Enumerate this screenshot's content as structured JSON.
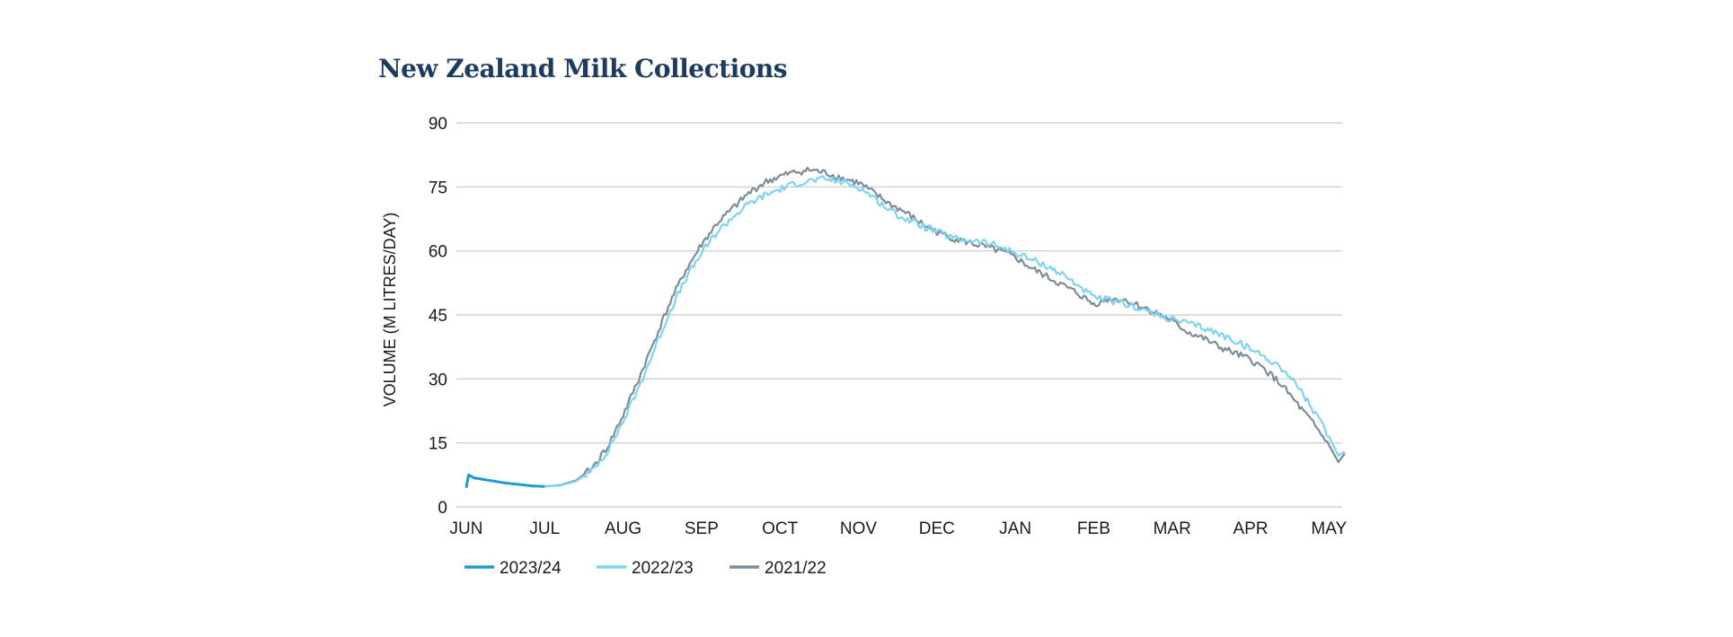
{
  "chart_data": {
    "type": "line",
    "title": "New Zealand Milk Collections",
    "ylabel": "VOLUME (M LITRES/DAY)",
    "xlabel": "",
    "ylim": [
      0,
      90
    ],
    "yticks": [
      "0",
      "15",
      "30",
      "45",
      "60",
      "75",
      "90"
    ],
    "x_categories": [
      "JUN",
      "JUL",
      "AUG",
      "SEP",
      "OCT",
      "NOV",
      "DEC",
      "JAN",
      "FEB",
      "MAR",
      "APR",
      "MAY"
    ],
    "grid": true,
    "legend_position": "bottom-left",
    "series": [
      {
        "name": "2023/24",
        "color": "#1f9ad1",
        "points": [
          [
            0,
            4.5
          ],
          [
            0.03,
            7.5
          ],
          [
            0.1,
            6.8
          ],
          [
            0.3,
            6.2
          ],
          [
            0.5,
            5.6
          ],
          [
            0.7,
            5.2
          ],
          [
            0.85,
            4.9
          ],
          [
            1.0,
            4.8
          ]
        ]
      },
      {
        "name": "2022/23",
        "color": "#7fd3f2",
        "points": [
          [
            1.0,
            4.8
          ],
          [
            1.2,
            5.0
          ],
          [
            1.4,
            6.0
          ],
          [
            1.6,
            8.5
          ],
          [
            1.8,
            13.0
          ],
          [
            2.0,
            20.0
          ],
          [
            2.2,
            28.0
          ],
          [
            2.4,
            37.0
          ],
          [
            2.6,
            46.0
          ],
          [
            2.8,
            53.5
          ],
          [
            3.0,
            59.5
          ],
          [
            3.2,
            64.5
          ],
          [
            3.4,
            68.0
          ],
          [
            3.6,
            71.0
          ],
          [
            3.8,
            73.0
          ],
          [
            4.0,
            74.5
          ],
          [
            4.2,
            75.8
          ],
          [
            4.4,
            76.5
          ],
          [
            4.6,
            76.8
          ],
          [
            4.8,
            76.2
          ],
          [
            5.0,
            75.0
          ],
          [
            5.2,
            72.5
          ],
          [
            5.4,
            69.5
          ],
          [
            5.6,
            67.5
          ],
          [
            5.8,
            66.0
          ],
          [
            6.0,
            64.5
          ],
          [
            6.2,
            63.0
          ],
          [
            6.4,
            62.5
          ],
          [
            6.6,
            62.0
          ],
          [
            6.8,
            61.0
          ],
          [
            7.0,
            59.5
          ],
          [
            7.2,
            58.0
          ],
          [
            7.4,
            56.5
          ],
          [
            7.6,
            54.5
          ],
          [
            7.8,
            52.0
          ],
          [
            8.0,
            49.0
          ],
          [
            8.2,
            48.5
          ],
          [
            8.4,
            47.5
          ],
          [
            8.6,
            46.5
          ],
          [
            8.8,
            45.0
          ],
          [
            9.0,
            44.0
          ],
          [
            9.2,
            43.0
          ],
          [
            9.4,
            42.0
          ],
          [
            9.6,
            40.5
          ],
          [
            9.8,
            39.0
          ],
          [
            10.0,
            37.0
          ],
          [
            10.2,
            35.0
          ],
          [
            10.4,
            32.5
          ],
          [
            10.6,
            28.5
          ],
          [
            10.8,
            22.5
          ],
          [
            11.0,
            16.5
          ],
          [
            11.12,
            12.0
          ],
          [
            11.2,
            13.0
          ]
        ]
      },
      {
        "name": "2021/22",
        "color": "#7e8c98",
        "points": [
          [
            1.0,
            4.8
          ],
          [
            1.2,
            5.1
          ],
          [
            1.4,
            6.2
          ],
          [
            1.6,
            9.0
          ],
          [
            1.8,
            14.0
          ],
          [
            2.0,
            21.5
          ],
          [
            2.2,
            30.0
          ],
          [
            2.4,
            39.0
          ],
          [
            2.6,
            48.0
          ],
          [
            2.8,
            55.5
          ],
          [
            3.0,
            61.5
          ],
          [
            3.2,
            66.5
          ],
          [
            3.4,
            70.0
          ],
          [
            3.6,
            73.5
          ],
          [
            3.8,
            76.0
          ],
          [
            4.0,
            77.5
          ],
          [
            4.2,
            78.5
          ],
          [
            4.4,
            79.0
          ],
          [
            4.6,
            78.2
          ],
          [
            4.8,
            77.0
          ],
          [
            5.0,
            76.0
          ],
          [
            5.2,
            73.5
          ],
          [
            5.4,
            71.0
          ],
          [
            5.6,
            69.0
          ],
          [
            5.8,
            66.5
          ],
          [
            6.0,
            64.5
          ],
          [
            6.2,
            63.0
          ],
          [
            6.4,
            62.0
          ],
          [
            6.6,
            61.0
          ],
          [
            6.8,
            60.0
          ],
          [
            7.0,
            58.5
          ],
          [
            7.2,
            56.0
          ],
          [
            7.4,
            54.0
          ],
          [
            7.6,
            52.0
          ],
          [
            7.8,
            50.0
          ],
          [
            8.0,
            47.5
          ],
          [
            8.2,
            48.8
          ],
          [
            8.4,
            48.5
          ],
          [
            8.6,
            47.0
          ],
          [
            8.8,
            45.5
          ],
          [
            9.0,
            43.5
          ],
          [
            9.2,
            41.0
          ],
          [
            9.4,
            39.5
          ],
          [
            9.6,
            37.5
          ],
          [
            9.8,
            36.0
          ],
          [
            10.0,
            34.5
          ],
          [
            10.2,
            32.0
          ],
          [
            10.4,
            28.5
          ],
          [
            10.6,
            24.0
          ],
          [
            10.8,
            19.5
          ],
          [
            11.0,
            14.5
          ],
          [
            11.12,
            10.5
          ],
          [
            11.2,
            12.5
          ]
        ]
      }
    ]
  }
}
